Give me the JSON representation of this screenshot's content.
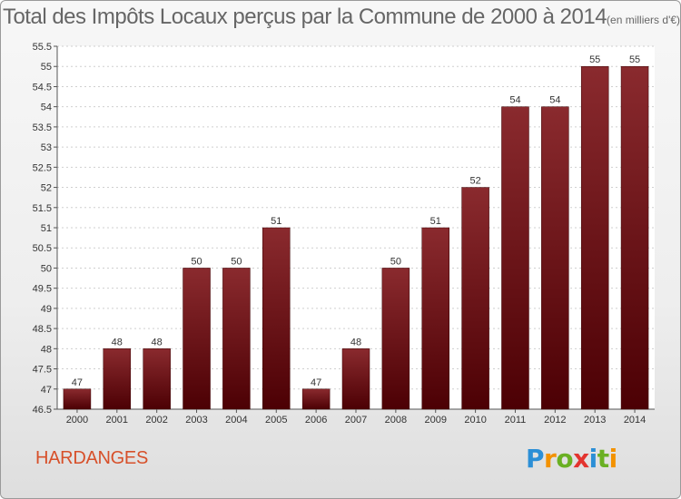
{
  "chart_data": {
    "type": "bar",
    "title": "Total des Impôts Locaux perçus par la Commune de 2000 à 2014",
    "unit": "(en milliers d'€)",
    "categories": [
      "2000",
      "2001",
      "2002",
      "2003",
      "2004",
      "2005",
      "2006",
      "2007",
      "2008",
      "2009",
      "2010",
      "2011",
      "2012",
      "2013",
      "2014"
    ],
    "values": [
      47,
      48,
      48,
      50,
      50,
      51,
      47,
      48,
      50,
      51,
      52,
      54,
      54,
      55,
      55
    ],
    "ylim": [
      46.5,
      55.5
    ],
    "ytick_step": 0.5,
    "ytick_labels": [
      "46.5",
      "47",
      "47.5",
      "48",
      "48.5",
      "49",
      "49.5",
      "50",
      "50.5",
      "51",
      "51.5",
      "52",
      "52.5",
      "53",
      "53.5",
      "54",
      "54.5",
      "55",
      "55.5"
    ],
    "xlabel": "",
    "ylabel": "",
    "grid": true,
    "bar_color_top": "#8a2a2e",
    "bar_color_bottom": "#4c0004"
  },
  "commune": "HARDANGES",
  "brand": {
    "letters": [
      "P",
      "r",
      "o",
      "x",
      "i",
      "t",
      "i"
    ],
    "colors": [
      "#2c8fd6",
      "#f39200",
      "#6ab023",
      "#e3342f",
      "#2c8fd6",
      "#6ab023",
      "#f39200"
    ]
  }
}
